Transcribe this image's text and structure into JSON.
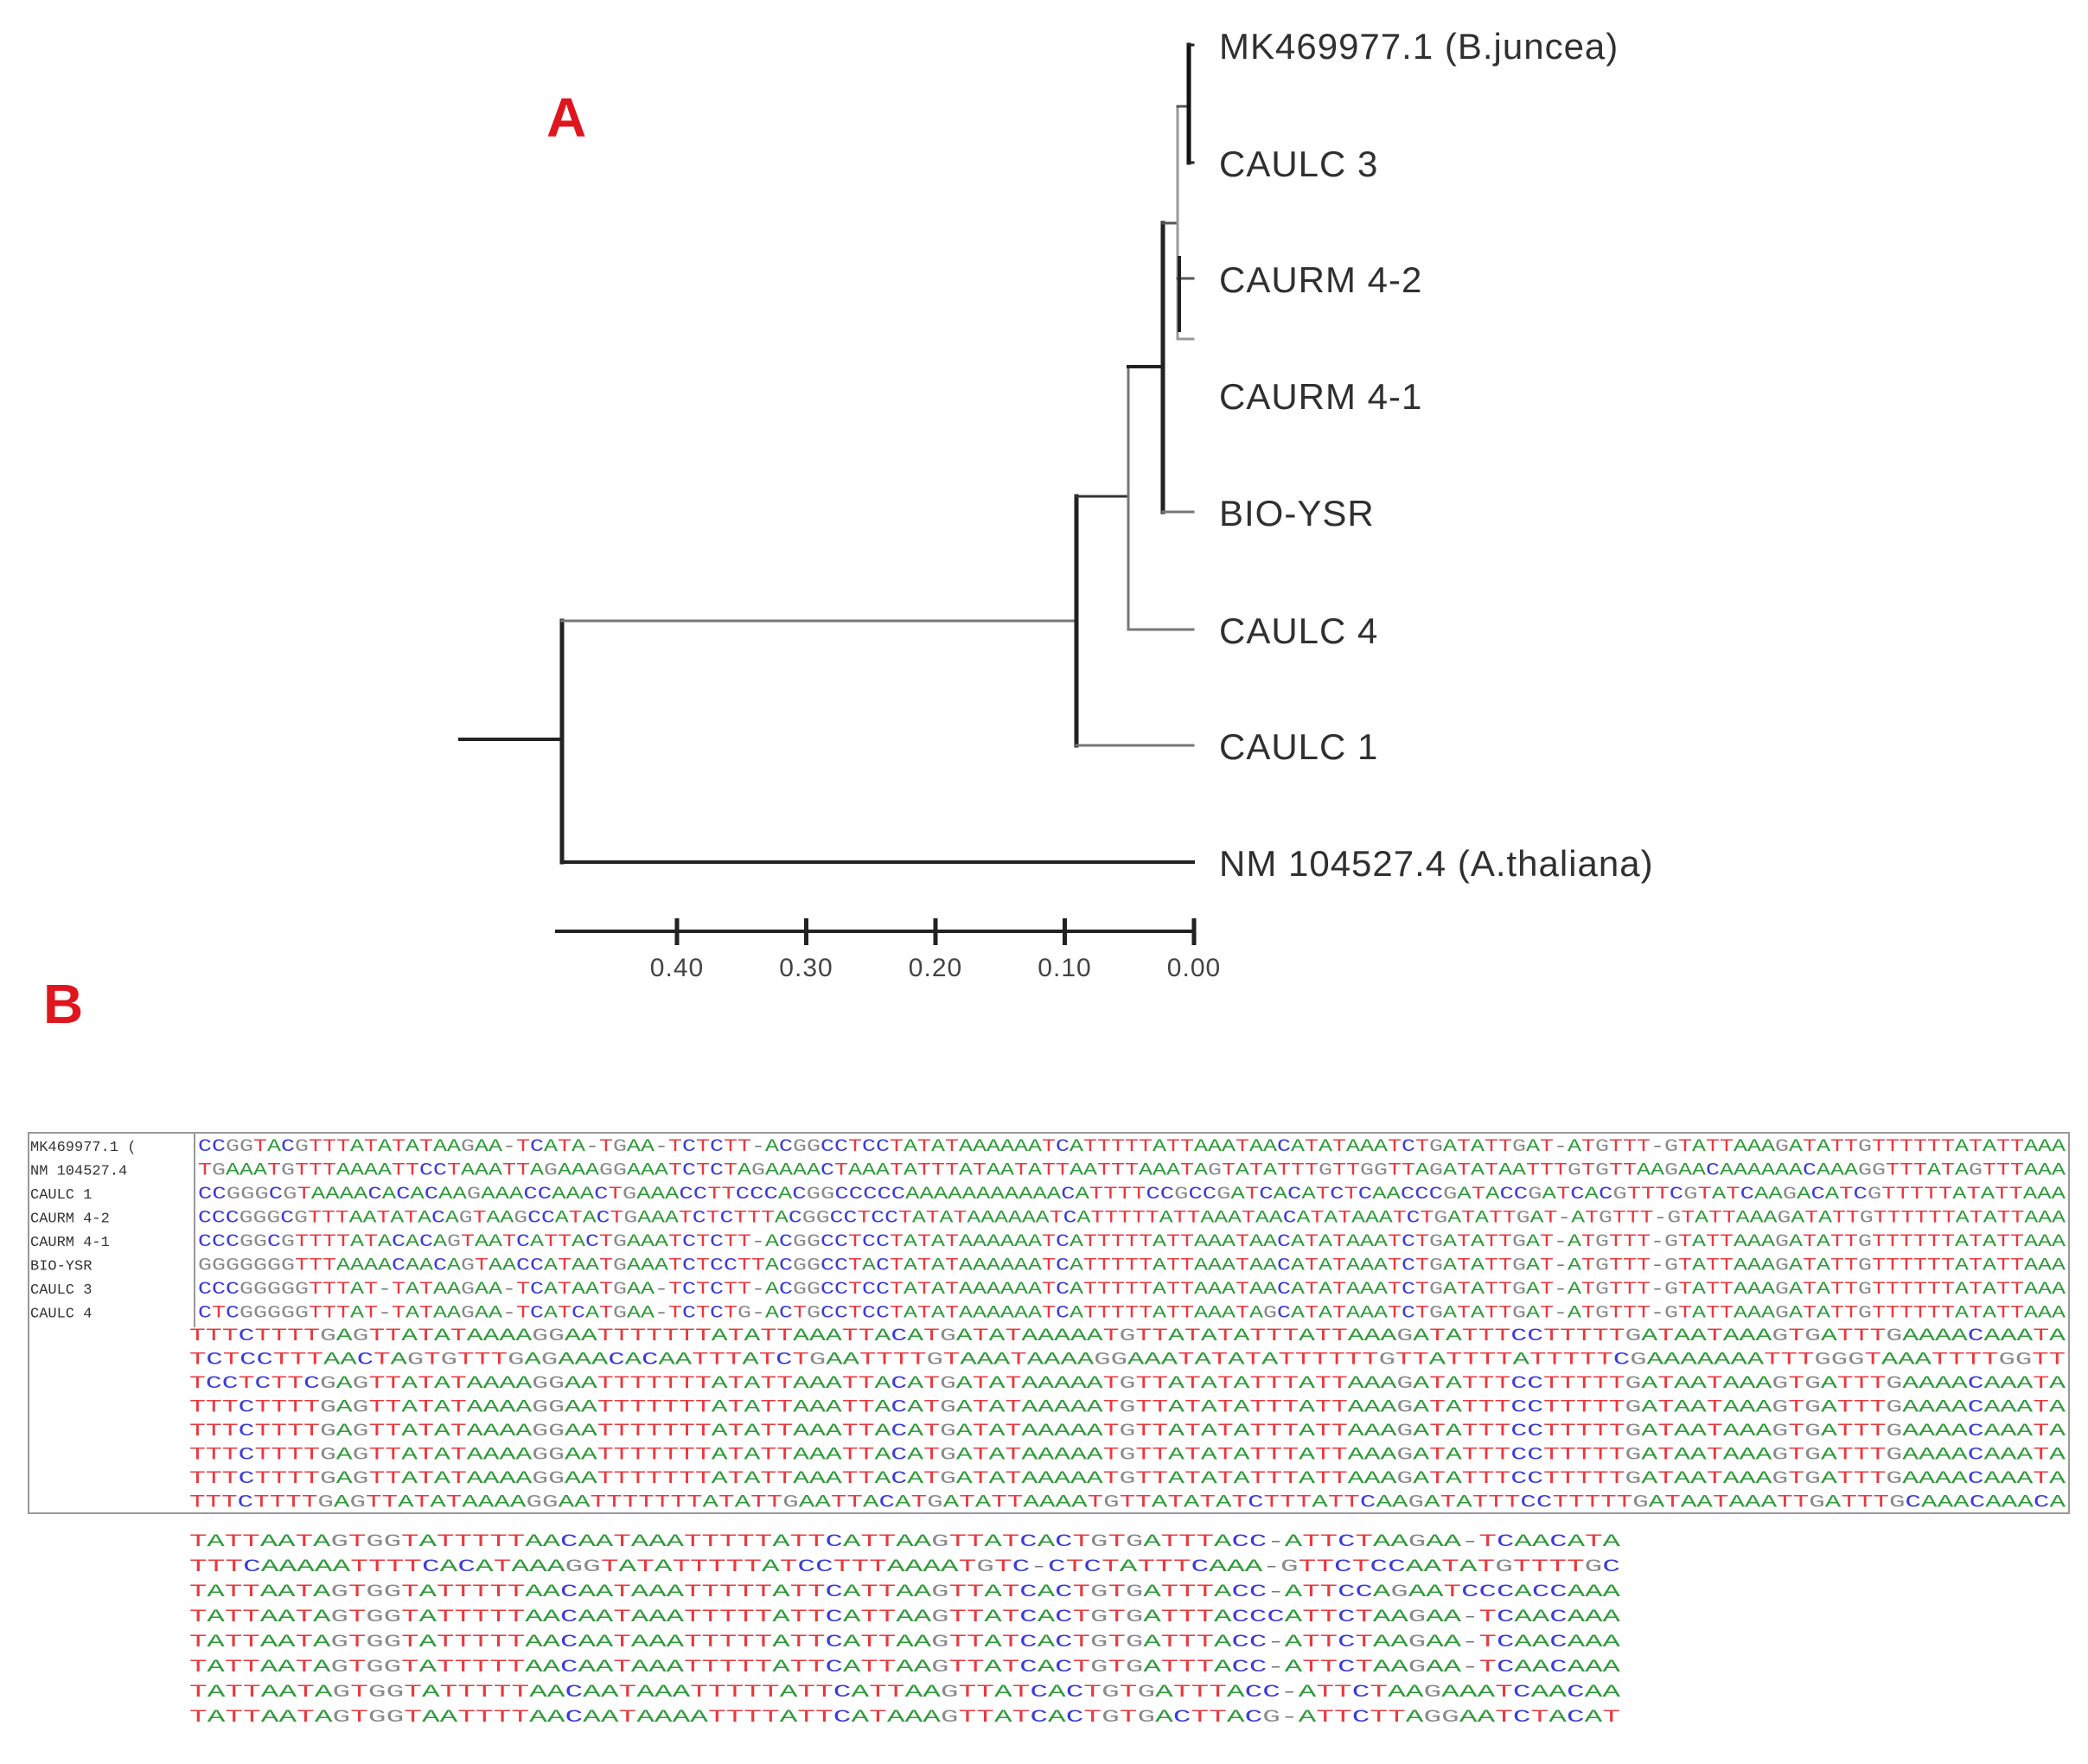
{
  "panel_a": {
    "label": "A",
    "taxa": [
      "MK469977.1 (B.juncea)",
      "CAULC 3",
      "CAURM 4-2",
      "CAURM 4-1",
      "BIO-YSR",
      "CAULC 4",
      "CAULC 1",
      "NM 104527.4 (A.thaliana)"
    ],
    "scale": {
      "ticks": [
        0.4,
        0.3,
        0.2,
        0.1,
        0.0
      ],
      "tick_labels": [
        "0.40",
        "0.30",
        "0.20",
        "0.10",
        "0.00"
      ]
    }
  },
  "panel_b": {
    "label": "B",
    "sequence_names": [
      "MK469977.1 (",
      "NM 104527.4",
      "CAULC 1",
      "CAURM 4-2",
      "CAURM 4-1",
      "BIO-YSR",
      "CAULC 3",
      "CAULC 4"
    ],
    "blocks": [
      [
        "CCGGTACGTTTATATATAAGAA-TCATA-TGAA-TCTCTT-ACGGCCTCCTATATAAAAAATCATTTTTATTAAATAACATATAAATCTGATATTGAT-ATGTTT-GTATTAAAGATATTGTTTTTTATATTAAA",
        "TGAAATGTTTAAAATTCCTAAATTAGAAAGGAAATCTCTAGAAAACTAAATATTTATAATATTAATTTAAATAGTATATTTGTTGGTTAGATATAATTTGTGTTAAGAACAAAAAACAAAGGTTTATAGTTTAAA",
        "CCGGGCGTAAAACACACAAGAAACCAAACTGAAACCTTCCCACGGCCCCCAAAAAAAAAAACATTTTCCGCCGATCACATCTCAACCCGATACCGATCACGTTTCGTATCAAGACATCGTTTTTATATTAAA",
        "CCCGGGCGTTTAATATACAGTAAGCCATACTGAAATCTCTTTACGGCCTCCTATATAAAAAATCATTTTTATTAAATAACATATAAATCTGATATTGAT-ATGTTT-GTATTAAAGATATTGTTTTTTATATTAAA",
        "CCCGGCGTTTTATACACAGTAATCATTACTGAAATCTCTT-ACGGCCTCCTATATAAAAAATCATTTTTATTAAATAACATATAAATCTGATATTGAT-ATGTTT-GTATTAAAGATATTGTTTTTTATATTAAA",
        "GGGGGGGTTTAAAACAACAGTAACCATAATGAAATCTCCTTACGGCCTACTATATAAAAAATCATTTTTATTAAATAACATATAAATCTGATATTGAT-ATGTTT-GTATTAAAGATATTGTTTTTTATATTAAA",
        "CCCGGGGGTTTAT-TATAAGAA-TCATAATGAA-TCTCTT-ACGGCCTCCTATATAAAAAATCATTTTTATTAAATAACATATAAATCTGATATTGAT-ATGTTT-GTATTAAAGATATTGTTTTTTATATTAAA",
        "CTCGGGGGTTTAT-TATAAGAA-TCATCATGAA-TCTCTG-ACTGCCTCCTATATAAAAAATCATTTTTATTAAATAGCATATAAATCTGATATTGAT-ATGTTT-GTATTAAAGATATTGTTTTTTATATTAAA"
      ],
      [
        "TTTCTTTTGAGTTATATAAAAGGAATTTTTTTATATTAAATTACATGATATAAAAATGTTATATATTTATTAAAGATATTTCCTTTTTGATAATAAAGTGATTTGAAAACAAATA",
        "TCTCCTTTAACTAGTGTTTGAGAAACACAATTTATCTGAATTTTGTAAATAAAAGGAAATATATATTTTTTGTTATTTTATTTTTCGAAAAAAATTTGGGTAAATTTTGGTT",
        "TCCTCTTCGAGTTATATAAAAGGAATTTTTTTATATTAAATTACATGATATAAAAATGTTATATATTTATTAAAGATATTTCCTTTTTGATAATAAAGTGATTTGAAAACAAATA",
        "TTTCTTTTGAGTTATATAAAAGGAATTTTTTTATATTAAATTACATGATATAAAAATGTTATATATTTATTAAAGATATTTCCTTTTTGATAATAAAGTGATTTGAAAACAAATA",
        "TTTCTTTTGAGTTATATAAAAGGAATTTTTTTATATTAAATTACATGATATAAAAATGTTATATATTTATTAAAGATATTTCCTTTTTGATAATAAAGTGATTTGAAAACAAATA",
        "TTTCTTTTGAGTTATATAAAAGGAATTTTTTTATATTAAATTACATGATATAAAAATGTTATATATTTATTAAAGATATTTCCTTTTTGATAATAAAGTGATTTGAAAACAAATA",
        "TTTCTTTTGAGTTATATAAAAGGAATTTTTTTATATTAAATTACATGATATAAAAATGTTATATATTTATTAAAGATATTTCCTTTTTGATAATAAAGTGATTTGAAAACAAATA",
        "TTTCTTTTGAGTTATATAAAAGGAATTTTTTTATATTGAATTACATGATATTAAAATGTTATATATCTTTATTCAAGATATTTCCTTTTTGATAATAAATTGATTTGCAAACAAACA"
      ],
      [
        "TATTAATAGTGGTATTTTTAACAATAAATTTTTATTCATTAAGTTATCACTGTGATTTACC-ATTCTAAGAA-TCAACATA",
        "TTTCAAAAATTTTCACATAAAGGTATATTTTTATCCTTTAAAATGTC-CTCTATTTCAAA-GTTCTCCAATATGTTTTGC",
        "TATTAATAGTGGTATTTTTAACAATAAATTTTTATTCATTAAGTTATCACTGTGATTTACC-ATTCCAGAATCCCACCAAA",
        "TATTAATAGTGGTATTTTTAACAATAAATTTTTATTCATTAAGTTATCACTGTGATTTACCCATTCTAAGAA-TCAACAAA",
        "TATTAATAGTGGTATTTTTAACAATAAATTTTTATTCATTAAGTTATCACTGTGATTTACC-ATTCTAAGAA-TCAACAAA",
        "TATTAATAGTGGTATTTTTAACAATAAATTTTTATTCATTAAGTTATCACTGTGATTTACC-ATTCTAAGAA-TCAACAAA",
        "TATTAATAGTGGTATTTTTAACAATAAATTTTTATTCATTAAGTTATCACTGTGATTTACC-ATTCTAAGAAATCAACAA",
        "TATTAATAGTGGTAATTTTAACAATAAAATTTTATTCATAAAGTTATCACTGTGACTTACG-ATTCTTAGGAATCTACAT"
      ]
    ],
    "base_colors": {
      "A": "#2f9a3a",
      "T": "#e8393f",
      "C": "#3b3bd8",
      "G": "#8a8a8a",
      "-": "#777777"
    }
  }
}
